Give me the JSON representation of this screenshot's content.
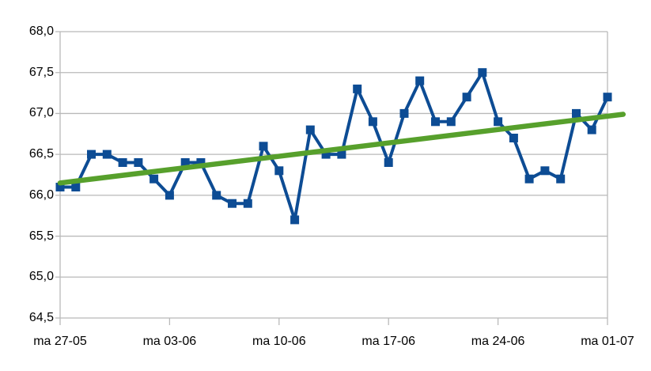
{
  "chart_data": {
    "type": "line",
    "title": "",
    "xlabel": "",
    "ylabel": "",
    "legend": "none",
    "grid": "horizontal",
    "decimal_separator": ",",
    "ylim": [
      64.5,
      68.0
    ],
    "y_step": 0.5,
    "y_tick_labels": [
      "68,0",
      "67,5",
      "67,0",
      "66,5",
      "66,0",
      "65,5",
      "65,0",
      "64,5"
    ],
    "x_tick_labels": [
      "ma 27-05",
      "ma 03-06",
      "ma 10-06",
      "ma 17-06",
      "ma 24-06",
      "ma 01-07"
    ],
    "x_days_per_tick": 7,
    "series": [
      {
        "name": "daily-values",
        "kind": "line-with-square-markers",
        "values": [
          66.1,
          66.1,
          66.5,
          66.5,
          66.4,
          66.4,
          66.2,
          66.0,
          66.4,
          66.4,
          66.0,
          65.9,
          65.9,
          66.6,
          66.3,
          65.7,
          66.8,
          66.5,
          66.5,
          67.3,
          66.9,
          66.4,
          67.0,
          67.4,
          66.9,
          66.9,
          67.2,
          67.5,
          66.9,
          66.7,
          66.2,
          66.3,
          66.2,
          67.0,
          66.8,
          67.2
        ]
      },
      {
        "name": "linear-trendline",
        "kind": "trendline",
        "start_value": 66.15,
        "end_value": 66.99
      }
    ],
    "colors": {
      "series": "#0d4c94",
      "trend": "#57a02c",
      "grid": "#b9b9b9",
      "text": "#000000",
      "background": "#ffffff"
    }
  }
}
